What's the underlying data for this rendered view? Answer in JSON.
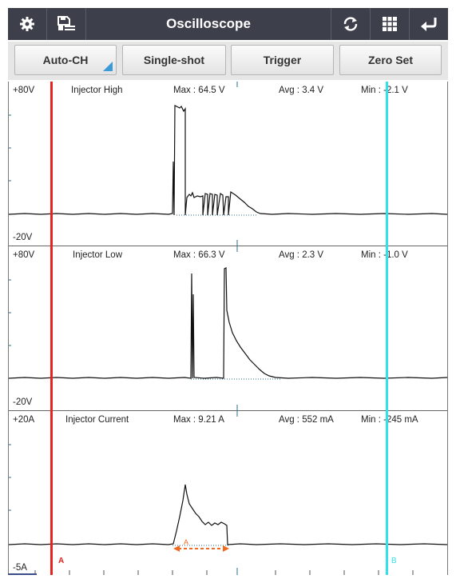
{
  "header": {
    "title": "Oscilloscope",
    "icons": [
      "gear-icon",
      "save-list-icon",
      "refresh-icon",
      "grid-icon",
      "back-icon"
    ]
  },
  "controls": {
    "auto_ch": "Auto-CH",
    "single_shot": "Single-shot",
    "trigger": "Trigger",
    "zero_set": "Zero Set"
  },
  "channels": [
    {
      "name": "Injector High",
      "top_label": "+80V",
      "bottom_label": "-20V",
      "max": "Max : 64.5 V",
      "avg": "Avg : 3.4 V",
      "min": "Min : -2.1 V"
    },
    {
      "name": "Injector Low",
      "top_label": "+80V",
      "bottom_label": "-20V",
      "max": "Max : 66.3 V",
      "avg": "Avg : 2.3 V",
      "min": "Min : -1.0 V"
    },
    {
      "name": "Injector Current",
      "top_label": "+20A",
      "bottom_label": "-5A",
      "max": "Max : 9.21 A",
      "avg": "Avg : 552 mA",
      "min": "Min : -245 mA"
    }
  ],
  "cursors": {
    "a_label": "A",
    "b_label": "B",
    "a_color": "#e8231e",
    "b_color": "#35e0ec",
    "measure_label": "A",
    "measure_color": "#f26a22"
  }
}
